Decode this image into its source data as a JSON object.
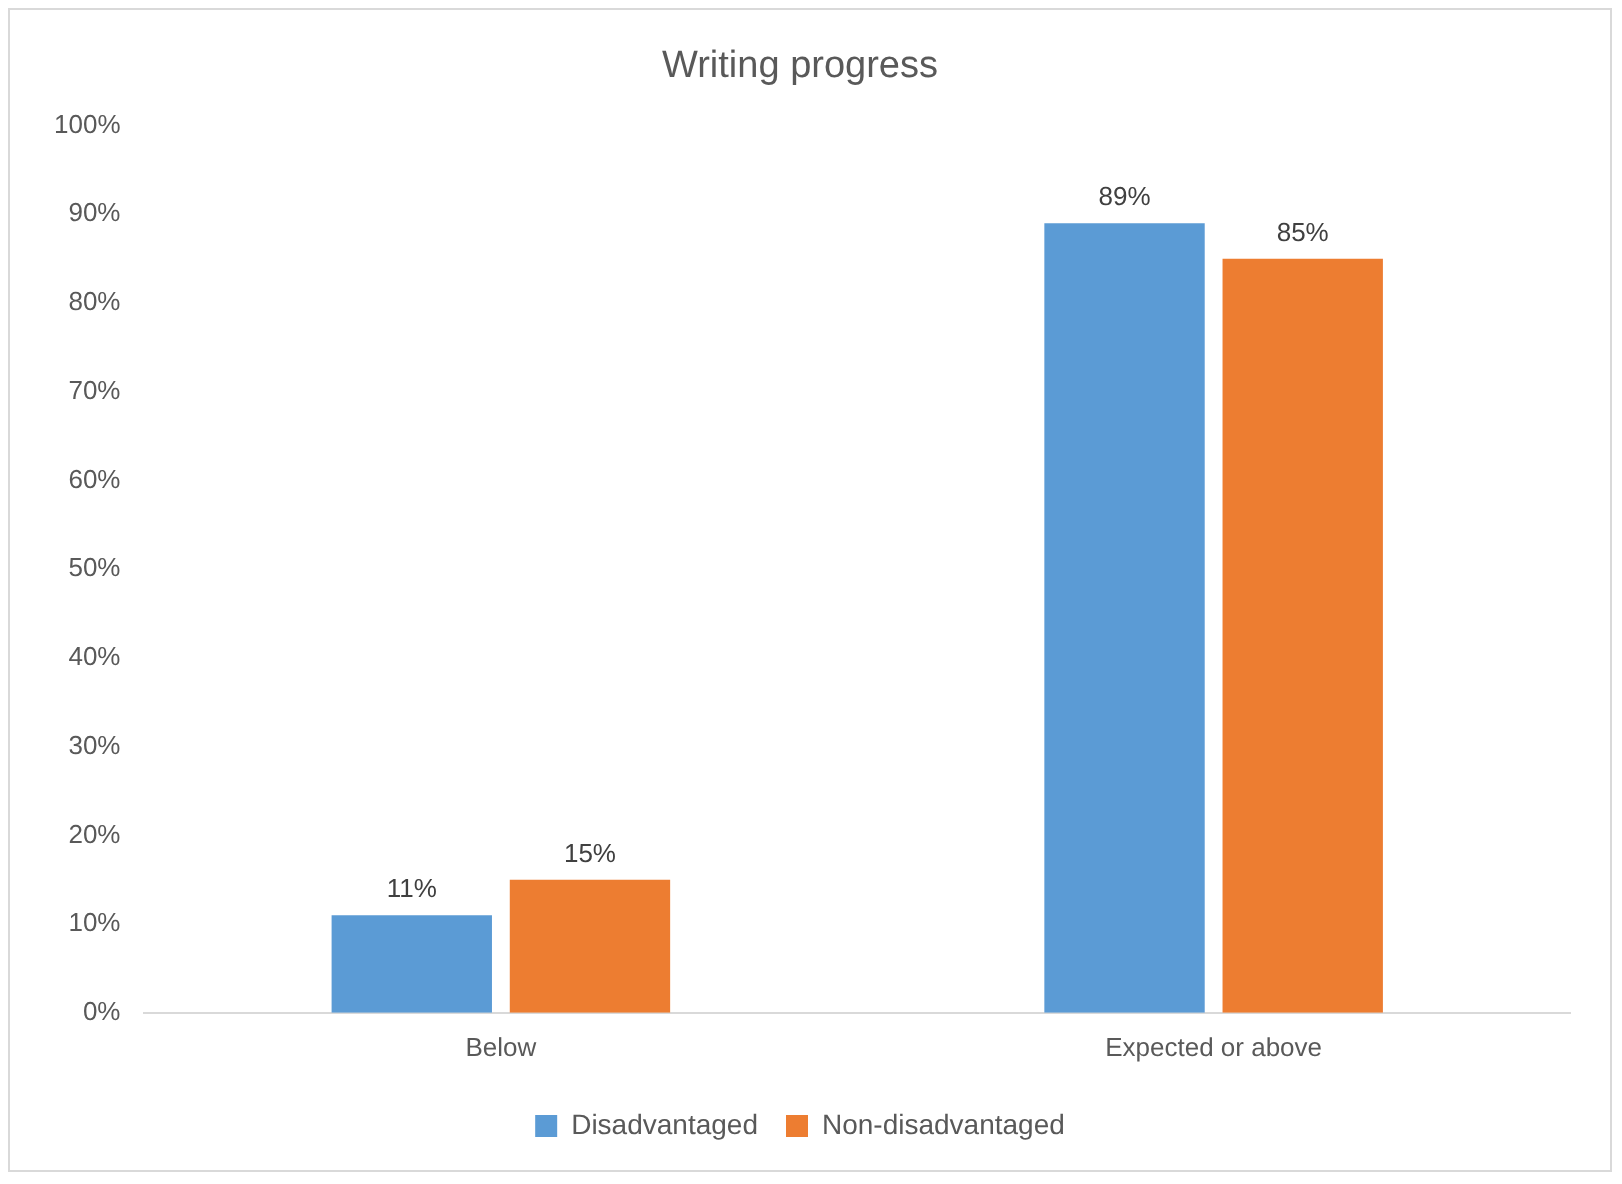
{
  "chart_data": {
    "type": "bar",
    "title": "Writing progress",
    "categories": [
      "Below",
      "Expected or above"
    ],
    "series": [
      {
        "name": "Disadvantaged",
        "color": "#5b9bd5",
        "values": [
          11,
          89
        ],
        "value_labels": [
          "11%",
          "89%"
        ]
      },
      {
        "name": "Non-disadvantaged",
        "color": "#ed7d31",
        "values": [
          15,
          85
        ],
        "value_labels": [
          "15%",
          "85%"
        ]
      }
    ],
    "ylim": [
      0,
      100
    ],
    "yticks": [
      {
        "value": 0,
        "label": "0%"
      },
      {
        "value": 10,
        "label": "10%"
      },
      {
        "value": 20,
        "label": "20%"
      },
      {
        "value": 30,
        "label": "30%"
      },
      {
        "value": 40,
        "label": "40%"
      },
      {
        "value": 50,
        "label": "50%"
      },
      {
        "value": 60,
        "label": "60%"
      },
      {
        "value": 70,
        "label": "70%"
      },
      {
        "value": 80,
        "label": "80%"
      },
      {
        "value": 90,
        "label": "90%"
      },
      {
        "value": 100,
        "label": "100%"
      }
    ],
    "grid": false,
    "legend": "bottom"
  }
}
